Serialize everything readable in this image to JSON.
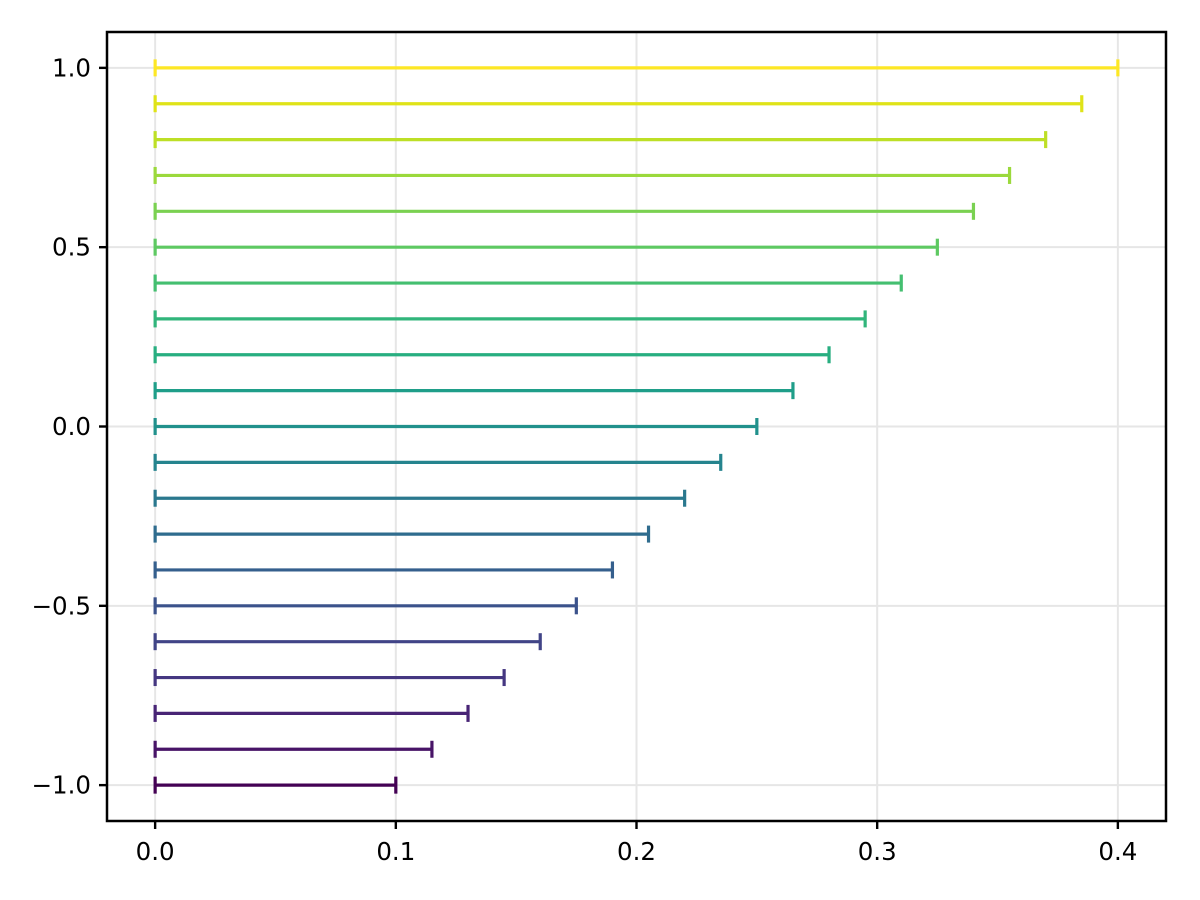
{
  "figure": {
    "background": "#ffffff",
    "title": ""
  },
  "style": {
    "spine_color": "#000000",
    "tick_color": "#000000",
    "tick_label_color": "#000000",
    "grid_color": "#e6e6e6",
    "plot_background": "#ffffff"
  },
  "chart_data": {
    "type": "bar",
    "subtype": "horizontal-errorbar-lines",
    "title": "",
    "xlabel": "",
    "ylabel": "",
    "xlim": [
      -0.02,
      0.42
    ],
    "ylim": [
      -1.1,
      1.1
    ],
    "grid": true,
    "legend": "none",
    "colormap": "viridis",
    "x_ticks": [
      {
        "value": 0.0,
        "label": "0.0"
      },
      {
        "value": 0.1,
        "label": "0.1"
      },
      {
        "value": 0.2,
        "label": "0.2"
      },
      {
        "value": 0.3,
        "label": "0.3"
      },
      {
        "value": 0.4,
        "label": "0.4"
      }
    ],
    "y_ticks": [
      {
        "value": 1.0,
        "label": "1.0"
      },
      {
        "value": 0.5,
        "label": "0.5"
      },
      {
        "value": 0.0,
        "label": "0.0"
      },
      {
        "value": -0.5,
        "label": "−0.5"
      },
      {
        "value": -1.0,
        "label": "−1.0"
      }
    ],
    "lines": [
      {
        "y": 1.0,
        "x_start": 0.0,
        "x_end": 0.4,
        "color": "#fde725"
      },
      {
        "y": 0.9,
        "x_start": 0.0,
        "x_end": 0.385,
        "color": "#dfe318"
      },
      {
        "y": 0.8,
        "x_start": 0.0,
        "x_end": 0.37,
        "color": "#bddf26"
      },
      {
        "y": 0.7,
        "x_start": 0.0,
        "x_end": 0.355,
        "color": "#9bd93c"
      },
      {
        "y": 0.6,
        "x_start": 0.0,
        "x_end": 0.34,
        "color": "#7ad151"
      },
      {
        "y": 0.5,
        "x_start": 0.0,
        "x_end": 0.325,
        "color": "#5ec962"
      },
      {
        "y": 0.4,
        "x_start": 0.0,
        "x_end": 0.31,
        "color": "#44bf70"
      },
      {
        "y": 0.3,
        "x_start": 0.0,
        "x_end": 0.295,
        "color": "#31b57b"
      },
      {
        "y": 0.2,
        "x_start": 0.0,
        "x_end": 0.28,
        "color": "#28ae80"
      },
      {
        "y": 0.1,
        "x_start": 0.0,
        "x_end": 0.265,
        "color": "#1f9e89"
      },
      {
        "y": 0.0,
        "x_start": 0.0,
        "x_end": 0.25,
        "color": "#21918c"
      },
      {
        "y": -0.1,
        "x_start": 0.0,
        "x_end": 0.235,
        "color": "#25848e"
      },
      {
        "y": -0.2,
        "x_start": 0.0,
        "x_end": 0.22,
        "color": "#2a788e"
      },
      {
        "y": -0.3,
        "x_start": 0.0,
        "x_end": 0.205,
        "color": "#2f6c8e"
      },
      {
        "y": -0.4,
        "x_start": 0.0,
        "x_end": 0.19,
        "color": "#355f8d"
      },
      {
        "y": -0.5,
        "x_start": 0.0,
        "x_end": 0.175,
        "color": "#3b528b"
      },
      {
        "y": -0.6,
        "x_start": 0.0,
        "x_end": 0.16,
        "color": "#414487"
      },
      {
        "y": -0.7,
        "x_start": 0.0,
        "x_end": 0.145,
        "color": "#453781"
      },
      {
        "y": -0.8,
        "x_start": 0.0,
        "x_end": 0.13,
        "color": "#482475"
      },
      {
        "y": -0.9,
        "x_start": 0.0,
        "x_end": 0.115,
        "color": "#481467"
      },
      {
        "y": -1.0,
        "x_start": 0.0,
        "x_end": 0.1,
        "color": "#440154"
      }
    ]
  }
}
